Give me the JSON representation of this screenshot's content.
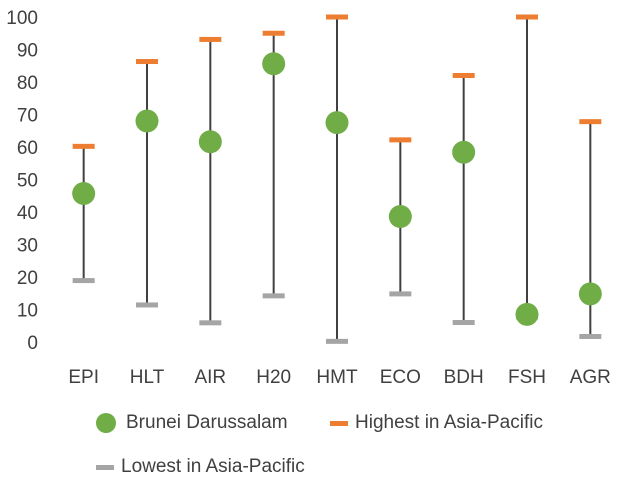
{
  "chart_data": {
    "type": "scatter",
    "categories": [
      "EPI",
      "HLT",
      "AIR",
      "H20",
      "HMT",
      "ECO",
      "BDH",
      "FSH",
      "AGR"
    ],
    "series": [
      {
        "name": "Brunei Darussalam",
        "values": [
          45.7,
          68,
          61.6,
          85.6,
          67.5,
          38.6,
          58.4,
          8.5,
          14.8
        ],
        "color": "#70ad47",
        "marker": "circle"
      },
      {
        "name": "Highest in Asia-Pacific",
        "values": [
          60.2,
          86.3,
          93.1,
          95,
          100,
          62.2,
          82,
          100,
          67.8
        ],
        "color": "#ed7d31",
        "marker": "dash"
      },
      {
        "name": "Lowest in Asia-Pacific",
        "values": [
          18.9,
          11.4,
          5.9,
          14.2,
          0.2,
          14.8,
          6,
          7.7,
          1.7
        ],
        "color": "#a5a5a5",
        "marker": "dash"
      }
    ],
    "ylim": [
      0,
      100
    ],
    "yticks": [
      0,
      10,
      20,
      30,
      40,
      50,
      60,
      70,
      80,
      90,
      100
    ],
    "range_line_color": "#404040",
    "grid": false,
    "legend_position": "bottom"
  }
}
